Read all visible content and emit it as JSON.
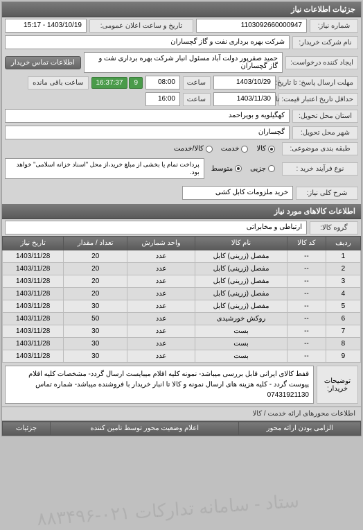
{
  "header": "جزئیات اطلاعات نیاز",
  "fields": {
    "need_number_label": "شماره نیاز:",
    "need_number": "1103092660000947",
    "announce_date_label": "تاریخ و ساعت اعلان عمومی:",
    "announce_date": "1403/10/19 - 15:17",
    "buyer_name_label": "نام شرکت خریدار:",
    "buyer_name": "شرکت بهره برداری نفت و گاز گچساران",
    "requester_label": "ایجاد کننده درخواست:",
    "requester": "حمید صفرپور دولت آباد مسئول انبار شرکت بهره برداری نفت و گاز گچساران",
    "contact_btn": "اطلاعات تماس خریدار",
    "deadline_label": "مهلت ارسال پاسخ: تا تاریخ:",
    "deadline_date": "1403/10/29",
    "time_label": "ساعت",
    "deadline_time": "08:00",
    "remaining_label": "ساعت باقی مانده",
    "remaining_days": "9",
    "remaining_time": "16:37:37",
    "validity_label": "حداقل تاریخ اعتبار قیمت: تا تاریخ:",
    "validity_date": "1403/11/30",
    "validity_time": "16:00",
    "province_label": "استان محل تحویل:",
    "province": "کهگیلویه و بویراحمد",
    "city_label": "شهر محل تحویل:",
    "city": "گچساران",
    "package_label": "طبقه بندی موضوعی:",
    "process_label": "نوع فرآیند خرید :",
    "payment_note": "پرداخت تمام یا بخشی از مبلغ خرید،از محل \"اسناد خزانه اسلامی\" خواهد بود."
  },
  "radios": {
    "package": [
      {
        "label": "کالا",
        "checked": true
      },
      {
        "label": "خدمت",
        "checked": false
      },
      {
        "label": "کالا/خدمت",
        "checked": false
      }
    ],
    "process": [
      {
        "label": "جزیی",
        "checked": false
      },
      {
        "label": "متوسط",
        "checked": true
      }
    ]
  },
  "need_desc": {
    "label": "شرح کلی نیاز:",
    "value": "خرید ملزومات کابل کشی"
  },
  "goods_info_title": "اطلاعات کالاهای مورد نیاز",
  "goods_group": {
    "label": "گروه کالا:",
    "value": "ارتباطی و مخابراتی"
  },
  "table": {
    "columns": [
      "ردیف",
      "کد کالا",
      "نام کالا",
      "واحد شمارش",
      "تعداد / مقدار",
      "تاریخ نیاز"
    ],
    "rows": [
      [
        "1",
        "--",
        "مفصل (زرینی) کابل",
        "عدد",
        "20",
        "1403/11/28"
      ],
      [
        "2",
        "--",
        "مفصل (زرینی) کابل",
        "عدد",
        "20",
        "1403/11/28"
      ],
      [
        "3",
        "--",
        "مفصل (زرینی) کابل",
        "عدد",
        "20",
        "1403/11/28"
      ],
      [
        "4",
        "--",
        "مفصل (زرینی) کابل",
        "عدد",
        "20",
        "1403/11/28"
      ],
      [
        "5",
        "--",
        "مفصل (زرینی) کابل",
        "عدد",
        "30",
        "1403/11/28"
      ],
      [
        "6",
        "--",
        "روکش خورشیدی",
        "عدد",
        "50",
        "1403/11/28"
      ],
      [
        "7",
        "--",
        "بست",
        "عدد",
        "30",
        "1403/11/28"
      ],
      [
        "8",
        "--",
        "بست",
        "عدد",
        "30",
        "1403/11/28"
      ],
      [
        "9",
        "--",
        "بست",
        "عدد",
        "30",
        "1403/11/28"
      ]
    ]
  },
  "watermark": "ستاد - سامانه تدارکات ۰۲۱-۸۸۳۴۹۶",
  "notes": {
    "label": "توضیحات خریدار:",
    "text": "قفط کالای ایرانی قابل بررسی میباشد- نمونه کلیه اقلام میبایست ارسال گردد- مشخصات کلیه اقلام پیوست گردد - کلیه هزینه های ارسال نمونه و کالا تا انبار خریدار با فروشنده میباشد- شماره تماس 07431921130"
  },
  "section2": "اطلاعات محورهای ارائه خدمت / کالا",
  "bottom_table": {
    "columns": [
      "الزامی بودن ارائه محور",
      "اعلام وضعیت محور توسط تامین کننده",
      "جزئیات"
    ]
  },
  "colors": {
    "header_bg_start": "#7a7a7a",
    "header_bg_end": "#5a5a5a",
    "panel_bg": "#d4d4d4",
    "label_bg": "#e8e8e8",
    "value_bg": "#ffffff",
    "countdown_bg": "#4a9b4a",
    "border": "#999999"
  }
}
